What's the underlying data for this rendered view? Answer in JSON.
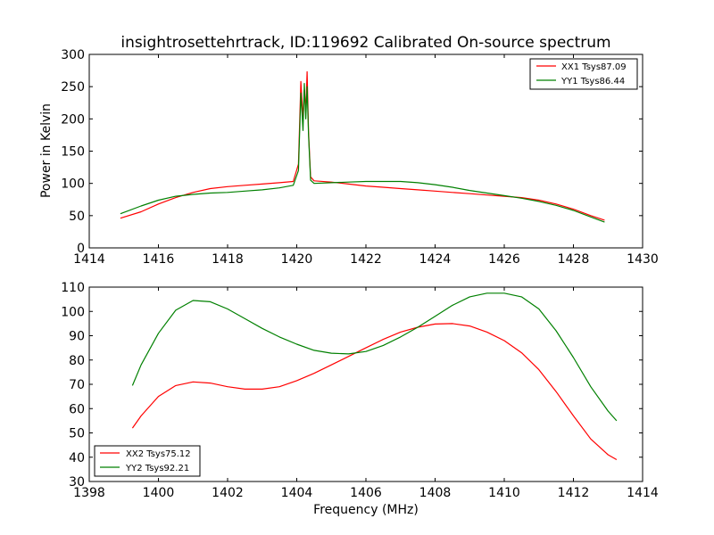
{
  "chart_data": [
    {
      "type": "line",
      "title": "insightrosettehrtrack, ID:119692 Calibrated On-source spectrum",
      "xlabel": "",
      "ylabel": "Power in Kelvin",
      "xlim": [
        1414,
        1430
      ],
      "ylim": [
        0,
        300
      ],
      "xticks": [
        1414,
        1416,
        1418,
        1420,
        1422,
        1424,
        1426,
        1428,
        1430
      ],
      "yticks": [
        0,
        50,
        100,
        150,
        200,
        250,
        300
      ],
      "legend_position": "top-right",
      "series": [
        {
          "name": "XX1 Tsys87.09",
          "color": "#ff0000",
          "x": [
            1414.9,
            1415.5,
            1416.0,
            1416.5,
            1417.0,
            1417.5,
            1418.0,
            1418.5,
            1419.0,
            1419.5,
            1419.9,
            1420.05,
            1420.12,
            1420.18,
            1420.22,
            1420.26,
            1420.3,
            1420.34,
            1420.4,
            1420.5,
            1421.0,
            1421.5,
            1422.0,
            1422.5,
            1423.0,
            1423.5,
            1424.0,
            1424.5,
            1425.0,
            1425.5,
            1426.0,
            1426.5,
            1427.0,
            1427.5,
            1428.0,
            1428.5,
            1428.9
          ],
          "y": [
            46,
            56,
            68,
            78,
            86,
            92,
            95,
            97,
            99,
            101,
            103,
            130,
            258,
            200,
            245,
            210,
            273,
            180,
            110,
            104,
            102,
            99,
            96,
            94,
            92,
            90,
            88,
            86,
            84,
            82,
            80,
            78,
            74,
            68,
            60,
            50,
            43
          ]
        },
        {
          "name": "YY1 Tsys86.44",
          "color": "#008000",
          "x": [
            1414.9,
            1415.5,
            1416.0,
            1416.5,
            1417.0,
            1417.5,
            1418.0,
            1418.5,
            1419.0,
            1419.5,
            1419.9,
            1420.05,
            1420.12,
            1420.18,
            1420.22,
            1420.26,
            1420.3,
            1420.34,
            1420.4,
            1420.5,
            1421.0,
            1421.5,
            1422.0,
            1422.5,
            1423.0,
            1423.5,
            1424.0,
            1424.5,
            1425.0,
            1425.5,
            1426.0,
            1426.5,
            1427.0,
            1427.5,
            1428.0,
            1428.5,
            1428.9
          ],
          "y": [
            53,
            65,
            74,
            80,
            83,
            85,
            86,
            88,
            90,
            93,
            97,
            120,
            240,
            182,
            255,
            200,
            250,
            175,
            105,
            100,
            101,
            102,
            103,
            103,
            103,
            101,
            98,
            94,
            89,
            85,
            81,
            77,
            72,
            66,
            58,
            48,
            40
          ]
        }
      ]
    },
    {
      "type": "line",
      "title": "",
      "xlabel": "Frequency (MHz)",
      "ylabel": "",
      "xlim": [
        1398,
        1414
      ],
      "ylim": [
        30,
        110
      ],
      "xticks": [
        1398,
        1400,
        1402,
        1404,
        1406,
        1408,
        1410,
        1412,
        1414
      ],
      "yticks": [
        30,
        40,
        50,
        60,
        70,
        80,
        90,
        100,
        110
      ],
      "legend_position": "bottom-left",
      "series": [
        {
          "name": "XX2 Tsys75.12",
          "color": "#ff0000",
          "x": [
            1399.25,
            1399.5,
            1400.0,
            1400.5,
            1401.0,
            1401.5,
            1402.0,
            1402.5,
            1403.0,
            1403.5,
            1404.0,
            1404.5,
            1405.0,
            1405.5,
            1406.0,
            1406.5,
            1407.0,
            1407.5,
            1408.0,
            1408.5,
            1409.0,
            1409.5,
            1410.0,
            1410.5,
            1411.0,
            1411.5,
            1412.0,
            1412.5,
            1413.0,
            1413.25
          ],
          "y": [
            52,
            57,
            65,
            69.5,
            71,
            70.5,
            69,
            68,
            68,
            69,
            71.5,
            74.5,
            78,
            81.5,
            85,
            88.5,
            91.5,
            93.5,
            94.8,
            95,
            94,
            91.5,
            88,
            83,
            76,
            67,
            57,
            47.5,
            41,
            39
          ]
        },
        {
          "name": "YY2 Tsys92.21",
          "color": "#008000",
          "x": [
            1399.25,
            1399.5,
            1400.0,
            1400.5,
            1401.0,
            1401.5,
            1402.0,
            1402.5,
            1403.0,
            1403.5,
            1404.0,
            1404.5,
            1405.0,
            1405.5,
            1406.0,
            1406.5,
            1407.0,
            1407.5,
            1408.0,
            1408.5,
            1409.0,
            1409.5,
            1410.0,
            1410.5,
            1411.0,
            1411.5,
            1412.0,
            1412.5,
            1413.0,
            1413.25
          ],
          "y": [
            69.5,
            78,
            91,
            100.5,
            104.5,
            104,
            101,
            97,
            93,
            89.5,
            86.5,
            84,
            82.8,
            82.5,
            83.5,
            86,
            89.5,
            93.5,
            98,
            102.5,
            106,
            107.5,
            107.5,
            106,
            101,
            92,
            81,
            69,
            59,
            55
          ]
        }
      ]
    }
  ]
}
